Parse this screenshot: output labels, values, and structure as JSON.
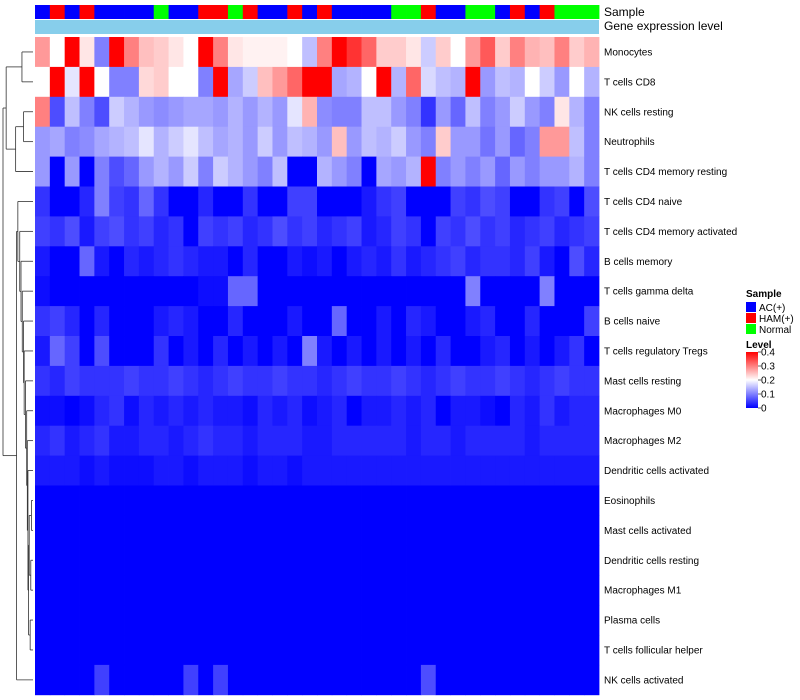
{
  "chart_data": {
    "type": "heatmap",
    "title": "",
    "annotation_rows": [
      "Sample",
      "Gene expression level"
    ],
    "row_labels": [
      "Monocytes",
      "T cells CD8",
      "NK cells resting",
      "Neutrophils",
      "T cells CD4 memory resting",
      "T cells CD4 naive",
      "T cells CD4 memory activated",
      "B cells memory",
      "T cells gamma delta",
      "B cells naive",
      "T cells regulatory  Tregs",
      "Mast cells resting",
      "Macrophages M0",
      "Macrophages M2",
      "Dendritic cells activated",
      "Eosinophils",
      "Mast cells activated",
      "Dendritic cells resting",
      "Macrophages M1",
      "Plasma cells",
      "T cells follicular helper",
      "NK cells activated"
    ],
    "sample_groups": [
      "AC",
      "HAM",
      "AC",
      "HAM",
      "AC",
      "AC",
      "AC",
      "AC",
      "Normal",
      "AC",
      "AC",
      "HAM",
      "HAM",
      "Normal",
      "HAM",
      "AC",
      "AC",
      "HAM",
      "AC",
      "HAM",
      "AC",
      "AC",
      "AC",
      "AC",
      "Normal",
      "Normal",
      "HAM",
      "AC",
      "AC",
      "Normal",
      "Normal",
      "AC",
      "HAM",
      "AC",
      "HAM",
      "Normal",
      "Normal",
      "Normal"
    ],
    "gene_expression_level_color": "#87ceeb",
    "values": [
      [
        0.28,
        0.2,
        0.4,
        0.22,
        0.1,
        0.4,
        0.3,
        0.25,
        0.24,
        0.22,
        0.2,
        0.4,
        0.3,
        0.22,
        0.21,
        0.21,
        0.21,
        0.2,
        0.15,
        0.3,
        0.4,
        0.36,
        0.32,
        0.24,
        0.24,
        0.22,
        0.16,
        0.24,
        0.2,
        0.28,
        0.33,
        0.24,
        0.3,
        0.26,
        0.25,
        0.3,
        0.24,
        0.26
      ],
      [
        0.2,
        0.4,
        0.18,
        0.4,
        0.2,
        0.1,
        0.1,
        0.23,
        0.24,
        0.2,
        0.2,
        0.1,
        0.4,
        0.13,
        0.16,
        0.25,
        0.28,
        0.32,
        0.4,
        0.4,
        0.13,
        0.14,
        0.2,
        0.4,
        0.14,
        0.32,
        0.17,
        0.15,
        0.14,
        0.4,
        0.12,
        0.15,
        0.14,
        0.2,
        0.16,
        0.12,
        0.2,
        0.14
      ],
      [
        0.3,
        0.06,
        0.15,
        0.1,
        0.06,
        0.16,
        0.14,
        0.12,
        0.11,
        0.12,
        0.13,
        0.13,
        0.12,
        0.14,
        0.12,
        0.14,
        0.12,
        0.18,
        0.26,
        0.11,
        0.1,
        0.1,
        0.15,
        0.15,
        0.12,
        0.1,
        0.04,
        0.12,
        0.08,
        0.15,
        0.1,
        0.12,
        0.16,
        0.12,
        0.1,
        0.22,
        0.14,
        0.1
      ],
      [
        0.12,
        0.13,
        0.1,
        0.11,
        0.13,
        0.14,
        0.15,
        0.18,
        0.14,
        0.16,
        0.18,
        0.15,
        0.13,
        0.14,
        0.12,
        0.16,
        0.12,
        0.15,
        0.14,
        0.12,
        0.25,
        0.12,
        0.15,
        0.14,
        0.16,
        0.12,
        0.1,
        0.24,
        0.12,
        0.12,
        0.09,
        0.12,
        0.08,
        0.1,
        0.28,
        0.28,
        0.15,
        0.1
      ],
      [
        0.12,
        0.0,
        0.12,
        0.0,
        0.1,
        0.06,
        0.08,
        0.12,
        0.14,
        0.12,
        0.16,
        0.1,
        0.16,
        0.14,
        0.12,
        0.1,
        0.15,
        0.0,
        0.0,
        0.14,
        0.12,
        0.1,
        0.0,
        0.13,
        0.12,
        0.14,
        0.4,
        0.1,
        0.12,
        0.1,
        0.12,
        0.08,
        0.12,
        0.1,
        0.12,
        0.12,
        0.14,
        0.1
      ],
      [
        0.04,
        0.0,
        0.0,
        0.03,
        0.1,
        0.05,
        0.04,
        0.08,
        0.04,
        0.0,
        0.0,
        0.03,
        0.0,
        0.0,
        0.04,
        0.0,
        0.0,
        0.05,
        0.05,
        0.0,
        0.0,
        0.0,
        0.02,
        0.04,
        0.05,
        0.0,
        0.0,
        0.0,
        0.05,
        0.04,
        0.06,
        0.05,
        0.0,
        0.0,
        0.04,
        0.05,
        0.0,
        0.06
      ],
      [
        0.05,
        0.04,
        0.06,
        0.02,
        0.05,
        0.06,
        0.04,
        0.05,
        0.03,
        0.04,
        0.0,
        0.05,
        0.04,
        0.05,
        0.03,
        0.04,
        0.06,
        0.04,
        0.05,
        0.03,
        0.04,
        0.05,
        0.02,
        0.03,
        0.05,
        0.04,
        0.0,
        0.05,
        0.04,
        0.06,
        0.04,
        0.05,
        0.03,
        0.04,
        0.05,
        0.03,
        0.04,
        0.05
      ],
      [
        0.02,
        0.0,
        0.0,
        0.08,
        0.02,
        0.0,
        0.03,
        0.02,
        0.03,
        0.04,
        0.03,
        0.02,
        0.02,
        0.0,
        0.03,
        0.0,
        0.0,
        0.02,
        0.01,
        0.02,
        0.0,
        0.02,
        0.03,
        0.02,
        0.04,
        0.02,
        0.03,
        0.04,
        0.05,
        0.03,
        0.04,
        0.04,
        0.03,
        0.05,
        0.02,
        0.0,
        0.06,
        0.03
      ],
      [
        0.01,
        0.0,
        0.0,
        0.0,
        0.0,
        0.0,
        0.0,
        0.0,
        0.0,
        0.0,
        0.0,
        0.01,
        0.01,
        0.08,
        0.08,
        0.0,
        0.0,
        0.0,
        0.0,
        0.0,
        0.0,
        0.0,
        0.0,
        0.0,
        0.0,
        0.0,
        0.0,
        0.0,
        0.0,
        0.1,
        0.0,
        0.0,
        0.0,
        0.0,
        0.1,
        0.0,
        0.0,
        0.0
      ],
      [
        0.04,
        0.05,
        0.03,
        0.0,
        0.03,
        0.0,
        0.0,
        0.0,
        0.02,
        0.03,
        0.02,
        0.0,
        0.0,
        0.03,
        0.0,
        0.0,
        0.0,
        0.02,
        0.0,
        0.0,
        0.08,
        0.0,
        0.0,
        0.02,
        0.0,
        0.03,
        0.02,
        0.0,
        0.0,
        0.02,
        0.03,
        0.0,
        0.0,
        0.03,
        0.0,
        0.0,
        0.0,
        0.05
      ],
      [
        0.02,
        0.08,
        0.05,
        0.0,
        0.06,
        0.0,
        0.0,
        0.0,
        0.04,
        0.0,
        0.02,
        0.0,
        0.03,
        0.0,
        0.02,
        0.0,
        0.02,
        0.0,
        0.1,
        0.02,
        0.0,
        0.02,
        0.0,
        0.02,
        0.0,
        0.02,
        0.0,
        0.03,
        0.0,
        0.0,
        0.02,
        0.03,
        0.0,
        0.02,
        0.0,
        0.02,
        0.04,
        0.0
      ],
      [
        0.04,
        0.03,
        0.05,
        0.04,
        0.04,
        0.04,
        0.05,
        0.04,
        0.04,
        0.05,
        0.04,
        0.03,
        0.04,
        0.05,
        0.04,
        0.04,
        0.05,
        0.04,
        0.04,
        0.03,
        0.04,
        0.05,
        0.04,
        0.04,
        0.05,
        0.04,
        0.03,
        0.04,
        0.05,
        0.04,
        0.04,
        0.05,
        0.04,
        0.03,
        0.04,
        0.05,
        0.04,
        0.04
      ],
      [
        0.01,
        0.01,
        0.0,
        0.01,
        0.03,
        0.04,
        0.01,
        0.03,
        0.02,
        0.03,
        0.02,
        0.03,
        0.02,
        0.02,
        0.01,
        0.03,
        0.02,
        0.03,
        0.01,
        0.02,
        0.03,
        0.0,
        0.02,
        0.02,
        0.03,
        0.02,
        0.03,
        0.0,
        0.02,
        0.02,
        0.01,
        0.0,
        0.03,
        0.02,
        0.04,
        0.02,
        0.03,
        0.03
      ],
      [
        0.03,
        0.04,
        0.02,
        0.03,
        0.04,
        0.02,
        0.02,
        0.03,
        0.03,
        0.02,
        0.03,
        0.04,
        0.03,
        0.03,
        0.02,
        0.03,
        0.03,
        0.03,
        0.02,
        0.02,
        0.03,
        0.03,
        0.03,
        0.03,
        0.03,
        0.02,
        0.03,
        0.03,
        0.02,
        0.03,
        0.03,
        0.03,
        0.03,
        0.02,
        0.03,
        0.03,
        0.03,
        0.03
      ],
      [
        0.02,
        0.02,
        0.02,
        0.01,
        0.02,
        0.01,
        0.01,
        0.01,
        0.02,
        0.02,
        0.01,
        0.02,
        0.02,
        0.02,
        0.01,
        0.02,
        0.02,
        0.01,
        0.02,
        0.02,
        0.02,
        0.02,
        0.02,
        0.02,
        0.02,
        0.02,
        0.02,
        0.02,
        0.02,
        0.02,
        0.02,
        0.02,
        0.02,
        0.02,
        0.02,
        0.02,
        0.02,
        0.02
      ],
      [
        0.0,
        0.0,
        0.0,
        0.0,
        0.0,
        0.0,
        0.0,
        0.0,
        0.0,
        0.0,
        0.0,
        0.0,
        0.0,
        0.0,
        0.0,
        0.0,
        0.0,
        0.0,
        0.0,
        0.0,
        0.0,
        0.0,
        0.0,
        0.0,
        0.0,
        0.0,
        0.0,
        0.0,
        0.0,
        0.0,
        0.0,
        0.0,
        0.0,
        0.0,
        0.0,
        0.0,
        0.0,
        0.0
      ],
      [
        0.0,
        0.0,
        0.0,
        0.0,
        0.0,
        0.0,
        0.0,
        0.0,
        0.0,
        0.0,
        0.0,
        0.0,
        0.0,
        0.0,
        0.0,
        0.0,
        0.0,
        0.0,
        0.0,
        0.0,
        0.0,
        0.0,
        0.0,
        0.0,
        0.0,
        0.0,
        0.0,
        0.0,
        0.0,
        0.0,
        0.0,
        0.0,
        0.0,
        0.0,
        0.0,
        0.0,
        0.0,
        0.0
      ],
      [
        0.0,
        0.0,
        0.0,
        0.0,
        0.0,
        0.0,
        0.0,
        0.0,
        0.0,
        0.0,
        0.0,
        0.0,
        0.0,
        0.0,
        0.0,
        0.0,
        0.0,
        0.0,
        0.0,
        0.0,
        0.0,
        0.0,
        0.0,
        0.0,
        0.0,
        0.0,
        0.0,
        0.0,
        0.0,
        0.0,
        0.0,
        0.0,
        0.0,
        0.0,
        0.0,
        0.0,
        0.0,
        0.0
      ],
      [
        0.0,
        0.0,
        0.0,
        0.0,
        0.0,
        0.0,
        0.0,
        0.0,
        0.0,
        0.0,
        0.0,
        0.0,
        0.0,
        0.0,
        0.0,
        0.0,
        0.0,
        0.0,
        0.0,
        0.0,
        0.0,
        0.0,
        0.0,
        0.0,
        0.0,
        0.0,
        0.0,
        0.0,
        0.0,
        0.0,
        0.0,
        0.0,
        0.0,
        0.0,
        0.0,
        0.0,
        0.0,
        0.0
      ],
      [
        0.0,
        0.0,
        0.0,
        0.0,
        0.0,
        0.0,
        0.0,
        0.0,
        0.0,
        0.0,
        0.0,
        0.0,
        0.0,
        0.0,
        0.0,
        0.0,
        0.0,
        0.0,
        0.0,
        0.0,
        0.0,
        0.0,
        0.0,
        0.0,
        0.0,
        0.0,
        0.0,
        0.0,
        0.0,
        0.0,
        0.0,
        0.0,
        0.0,
        0.0,
        0.0,
        0.0,
        0.0,
        0.0
      ],
      [
        0.0,
        0.0,
        0.0,
        0.0,
        0.0,
        0.0,
        0.0,
        0.0,
        0.0,
        0.0,
        0.0,
        0.0,
        0.0,
        0.0,
        0.0,
        0.0,
        0.0,
        0.0,
        0.0,
        0.0,
        0.0,
        0.0,
        0.0,
        0.0,
        0.0,
        0.0,
        0.0,
        0.0,
        0.0,
        0.0,
        0.0,
        0.0,
        0.0,
        0.0,
        0.0,
        0.0,
        0.0,
        0.0
      ],
      [
        0.0,
        0.0,
        0.0,
        0.0,
        0.05,
        0.0,
        0.0,
        0.0,
        0.0,
        0.0,
        0.05,
        0.0,
        0.05,
        0.0,
        0.0,
        0.0,
        0.0,
        0.0,
        0.0,
        0.0,
        0.0,
        0.0,
        0.0,
        0.0,
        0.0,
        0.0,
        0.06,
        0.0,
        0.0,
        0.0,
        0.0,
        0.0,
        0.0,
        0.0,
        0.0,
        0.0,
        0.0,
        0.0
      ]
    ],
    "color_scale": {
      "min": 0,
      "max": 0.4,
      "stops": [
        {
          "value": 0,
          "color": "#0000ff"
        },
        {
          "value": 0.2,
          "color": "#ffffff"
        },
        {
          "value": 0.4,
          "color": "#ff0000"
        }
      ]
    },
    "legend": {
      "sample": {
        "title": "Sample",
        "entries": [
          {
            "key": "AC",
            "label": "AC(+)",
            "color": "#0000ff"
          },
          {
            "key": "HAM",
            "label": "HAM(+)",
            "color": "#ff0000"
          },
          {
            "key": "Normal",
            "label": "Normal",
            "color": "#00ff00"
          }
        ]
      },
      "level": {
        "title": "Level",
        "ticks": [
          0.4,
          0.3,
          0.2,
          0.1,
          0
        ]
      },
      "placement": "right"
    },
    "dendrogram": "rows",
    "row_dendrogram": {
      "leaf_order": [
        0,
        1,
        2,
        3,
        4,
        5,
        6,
        7,
        8,
        9,
        10,
        11,
        12,
        13,
        14,
        15,
        16,
        17,
        18,
        19,
        20,
        21
      ],
      "merges": [
        [
          0,
          1,
          0.35
        ],
        [
          2,
          3,
          0.3
        ],
        [
          -2,
          4,
          0.55
        ],
        [
          -1,
          -3,
          0.85
        ],
        [
          15,
          16,
          0.05
        ],
        [
          17,
          18,
          0.07
        ],
        [
          19,
          20,
          0.09
        ],
        [
          -5,
          -6,
          0.12
        ],
        [
          -8,
          -7,
          0.14
        ],
        [
          14,
          -9,
          0.16
        ],
        [
          13,
          -10,
          0.18
        ],
        [
          12,
          -11,
          0.2
        ],
        [
          11,
          -12,
          0.24
        ],
        [
          10,
          -13,
          0.28
        ],
        [
          9,
          -14,
          0.3
        ],
        [
          8,
          -15,
          0.34
        ],
        [
          7,
          -16,
          0.38
        ],
        [
          6,
          -17,
          0.42
        ],
        [
          5,
          -18,
          0.48
        ],
        [
          21,
          -19,
          0.52
        ],
        [
          -20,
          -4,
          0.95
        ]
      ]
    }
  }
}
